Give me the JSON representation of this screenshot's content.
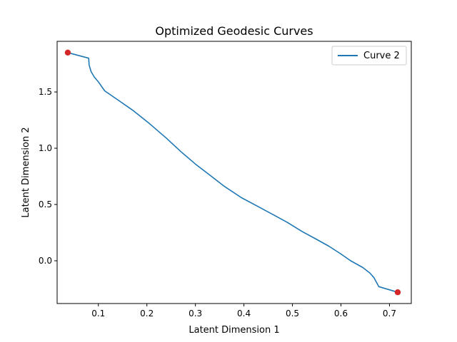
{
  "chart_data": {
    "type": "line",
    "title": "Optimized Geodesic Curves",
    "xlabel": "Latent Dimension 1",
    "ylabel": "Latent Dimension 2",
    "xlim": [
      0.015,
      0.745
    ],
    "ylim": [
      -0.38,
      1.95
    ],
    "xticks": [
      0.1,
      0.2,
      0.3,
      0.4,
      0.5,
      0.6,
      0.7
    ],
    "xtick_labels": [
      "0.1",
      "0.2",
      "0.3",
      "0.4",
      "0.5",
      "0.6",
      "0.7"
    ],
    "yticks": [
      0.0,
      0.5,
      1.0,
      1.5
    ],
    "ytick_labels": [
      "0.0",
      "0.5",
      "1.0",
      "1.5"
    ],
    "grid": false,
    "legend_position": "top-right",
    "series": [
      {
        "name": "Curve 2",
        "color": "#1f77b4",
        "x": [
          0.037,
          0.08,
          0.081,
          0.085,
          0.092,
          0.1,
          0.113,
          0.14,
          0.17,
          0.205,
          0.24,
          0.27,
          0.3,
          0.33,
          0.36,
          0.395,
          0.43,
          0.46,
          0.49,
          0.52,
          0.55,
          0.575,
          0.6,
          0.62,
          0.645,
          0.66,
          0.668,
          0.678,
          0.717
        ],
        "y": [
          1.85,
          1.8,
          1.74,
          1.68,
          1.63,
          1.59,
          1.51,
          1.43,
          1.34,
          1.22,
          1.09,
          0.97,
          0.86,
          0.76,
          0.66,
          0.56,
          0.48,
          0.41,
          0.34,
          0.26,
          0.19,
          0.13,
          0.06,
          0.0,
          -0.06,
          -0.11,
          -0.15,
          -0.23,
          -0.28
        ]
      }
    ],
    "endpoints": {
      "color": "#d62728",
      "x": [
        0.037,
        0.717
      ],
      "y": [
        1.85,
        -0.28
      ]
    }
  }
}
